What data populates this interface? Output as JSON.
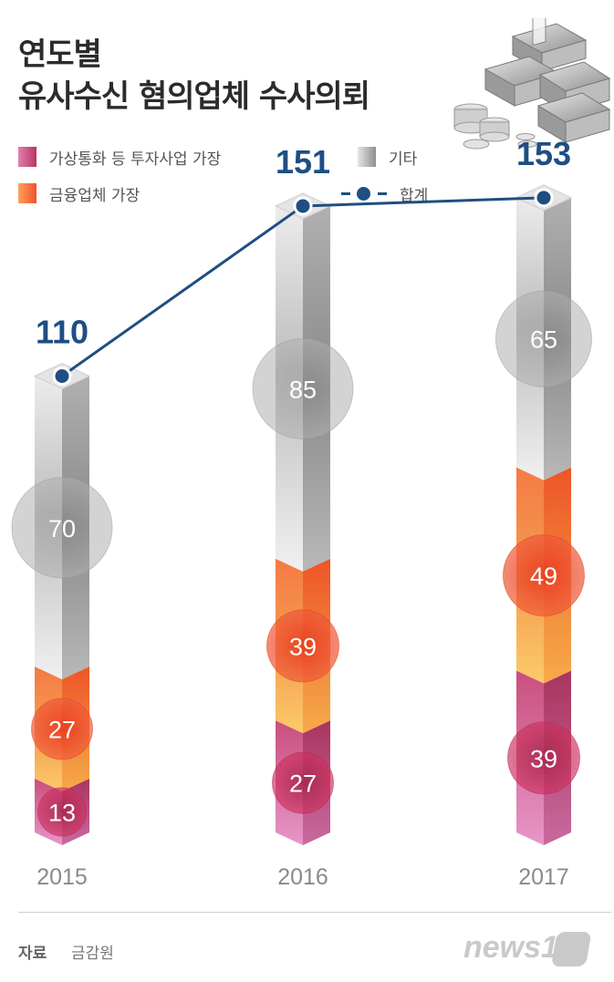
{
  "title": {
    "line1": "연도별",
    "line2": "유사수신 혐의업체 수사의뢰"
  },
  "legend": [
    {
      "label": "가상통화 등 투자사업 가장",
      "color": "#c2416f"
    },
    {
      "label": "금융업체 가장",
      "color": "#f36b3a"
    },
    {
      "label": "기타",
      "color": "#a7a7a7"
    },
    {
      "label": "합계",
      "color": "#1f4e82"
    }
  ],
  "chart_data": {
    "type": "bar",
    "stacked": true,
    "categories": [
      "2015",
      "2016",
      "2017"
    ],
    "series": [
      {
        "name": "가상통화 등 투자사업 가장",
        "values": [
          13,
          27,
          39
        ],
        "color": "#c2416f"
      },
      {
        "name": "금융업체 가장",
        "values": [
          27,
          39,
          49
        ],
        "color": "#f36b3a"
      },
      {
        "name": "기타",
        "values": [
          70,
          85,
          65
        ],
        "color": "#a7a7a7"
      }
    ],
    "totals": {
      "name": "합계",
      "type": "line",
      "values": [
        110,
        151,
        153
      ],
      "color": "#1f4e82"
    }
  },
  "source": {
    "label": "자료",
    "value": "금감원"
  },
  "brand": "news1",
  "icons": {
    "decoration": "money-stack-icon"
  }
}
